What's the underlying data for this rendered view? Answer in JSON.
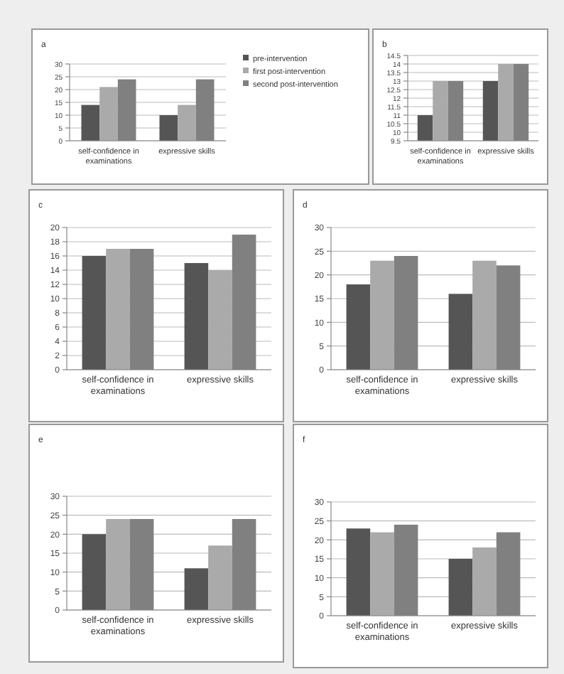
{
  "chart_data": [
    {
      "type": "bar",
      "title": "a",
      "categories": [
        "self-confidence in examinations",
        "expressive skills"
      ],
      "ylim": [
        0,
        30
      ],
      "yticks": [
        0,
        5,
        10,
        15,
        20,
        25,
        30
      ],
      "grid": "y",
      "legend": "right",
      "series": [
        {
          "name": "pre-intervention",
          "color": "#555555",
          "values": [
            14,
            10
          ]
        },
        {
          "name": "first post-intervention",
          "color": "#aaaaaa",
          "values": [
            21,
            14
          ]
        },
        {
          "name": "second post-intervention",
          "color": "#808080",
          "values": [
            24,
            24
          ]
        }
      ]
    },
    {
      "type": "bar",
      "title": "b",
      "categories": [
        "self-confidence in examinations",
        "expressive skills"
      ],
      "ylim": [
        9.5,
        14.5
      ],
      "yticks": [
        9.5,
        10,
        10.5,
        11,
        11.5,
        12,
        12.5,
        13,
        13.5,
        14,
        14.5
      ],
      "grid": "y",
      "series": [
        {
          "color": "#555555",
          "values": [
            11,
            13
          ]
        },
        {
          "color": "#aaaaaa",
          "values": [
            13,
            14
          ]
        },
        {
          "color": "#808080",
          "values": [
            13,
            14
          ]
        }
      ]
    },
    {
      "type": "bar",
      "title": "c",
      "categories": [
        "self-confidence in examinations",
        "expressive skills"
      ],
      "ylim": [
        0,
        20
      ],
      "yticks": [
        0,
        2,
        4,
        6,
        8,
        10,
        12,
        14,
        16,
        18,
        20
      ],
      "grid": "y",
      "series": [
        {
          "color": "#555555",
          "values": [
            16,
            15
          ]
        },
        {
          "color": "#aaaaaa",
          "values": [
            17,
            14
          ]
        },
        {
          "color": "#808080",
          "values": [
            17,
            19
          ]
        }
      ]
    },
    {
      "type": "bar",
      "title": "d",
      "categories": [
        "self-confidence in examinations",
        "expressive skills"
      ],
      "ylim": [
        0,
        30
      ],
      "yticks": [
        0,
        5,
        10,
        15,
        20,
        25,
        30
      ],
      "grid": "y",
      "series": [
        {
          "color": "#555555",
          "values": [
            18,
            16
          ]
        },
        {
          "color": "#aaaaaa",
          "values": [
            23,
            23
          ]
        },
        {
          "color": "#808080",
          "values": [
            24,
            22
          ]
        }
      ]
    },
    {
      "type": "bar",
      "title": "e",
      "categories": [
        "self-confidence in examinations",
        "expressive skills"
      ],
      "ylim": [
        0,
        30
      ],
      "yticks": [
        0,
        5,
        10,
        15,
        20,
        25,
        30
      ],
      "grid": "y",
      "series": [
        {
          "color": "#555555",
          "values": [
            20,
            11
          ]
        },
        {
          "color": "#aaaaaa",
          "values": [
            24,
            17
          ]
        },
        {
          "color": "#808080",
          "values": [
            24,
            24
          ]
        }
      ]
    },
    {
      "type": "bar",
      "title": "f",
      "categories": [
        "self-confidence in examinations",
        "expressive skills"
      ],
      "ylim": [
        0,
        30
      ],
      "yticks": [
        0,
        5,
        10,
        15,
        20,
        25,
        30
      ],
      "grid": "y",
      "series": [
        {
          "color": "#555555",
          "values": [
            23,
            15
          ]
        },
        {
          "color": "#aaaaaa",
          "values": [
            22,
            18
          ]
        },
        {
          "color": "#808080",
          "values": [
            24,
            22
          ]
        }
      ]
    }
  ]
}
